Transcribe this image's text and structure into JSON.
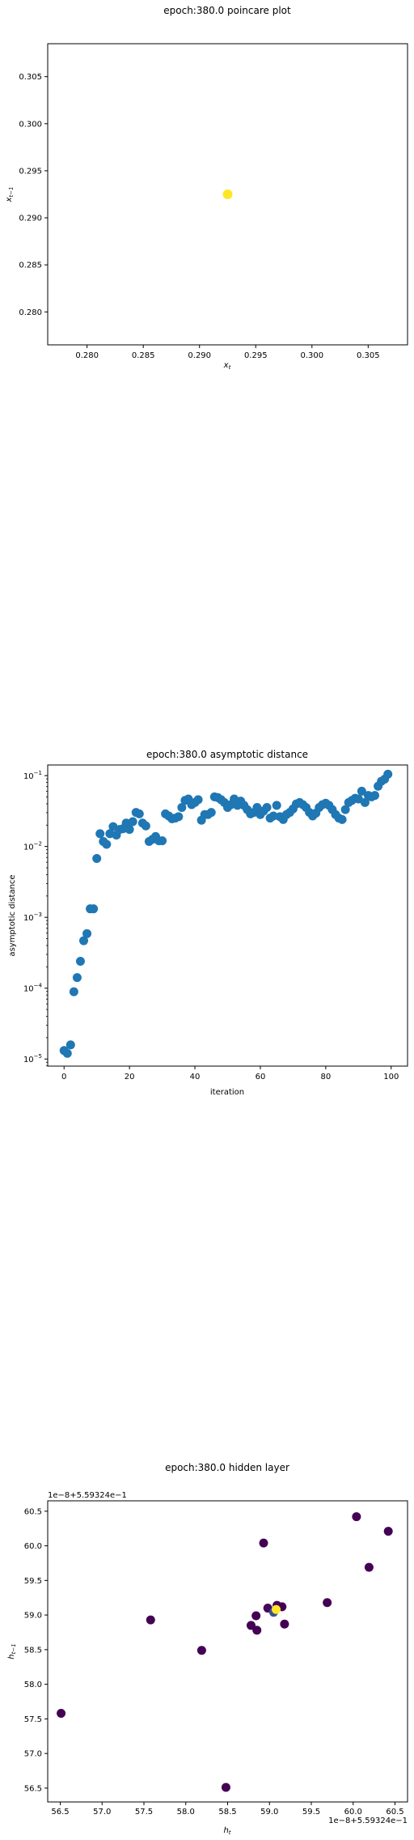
{
  "chart_data": [
    {
      "type": "scatter",
      "title": "epoch:380.0 poincare plot",
      "xlabel": "x_t",
      "ylabel": "x_{t-1}",
      "xlim": [
        0.2765,
        0.3085
      ],
      "ylim": [
        0.2765,
        0.3085
      ],
      "xticks": [
        0.28,
        0.285,
        0.29,
        0.295,
        0.3,
        0.305
      ],
      "yticks": [
        0.28,
        0.285,
        0.29,
        0.295,
        0.3,
        0.305
      ],
      "xtick_labels": [
        "0.280",
        "0.285",
        "0.290",
        "0.295",
        "0.300",
        "0.305"
      ],
      "ytick_labels": [
        "0.280",
        "0.285",
        "0.290",
        "0.295",
        "0.300",
        "0.305"
      ],
      "points": [
        {
          "x": 0.2925,
          "y": 0.2925
        }
      ],
      "point_color": "#fde725",
      "grid": false
    },
    {
      "type": "scatter",
      "title": "epoch:380.0 asymptotic distance",
      "xlabel": "iteration",
      "ylabel": "asymptotic distance",
      "yscale": "log",
      "xlim": [
        -5,
        105
      ],
      "ylim_log10": [
        -5.1,
        -0.85
      ],
      "xticks": [
        0,
        20,
        40,
        60,
        80,
        100
      ],
      "xtick_labels": [
        "0",
        "20",
        "40",
        "60",
        "80",
        "100"
      ],
      "yticks_log10": [
        -5,
        -4,
        -3,
        -2,
        -1
      ],
      "ytick_labels": [
        {
          "base": "10",
          "exp": "−5"
        },
        {
          "base": "10",
          "exp": "−4"
        },
        {
          "base": "10",
          "exp": "−3"
        },
        {
          "base": "10",
          "exp": "−2"
        },
        {
          "base": "10",
          "exp": "−1"
        }
      ],
      "x": [
        0,
        1,
        2,
        3,
        4,
        5,
        6,
        7,
        8,
        9,
        10,
        11,
        12,
        13,
        14,
        15,
        16,
        17,
        18,
        19,
        20,
        21,
        22,
        23,
        24,
        25,
        26,
        27,
        28,
        29,
        30,
        31,
        32,
        33,
        34,
        35,
        36,
        37,
        38,
        39,
        40,
        41,
        42,
        43,
        44,
        45,
        46,
        47,
        48,
        49,
        50,
        51,
        52,
        53,
        54,
        55,
        56,
        57,
        58,
        59,
        60,
        61,
        62,
        63,
        64,
        65,
        66,
        67,
        68,
        69,
        70,
        71,
        72,
        73,
        74,
        75,
        76,
        77,
        78,
        79,
        80,
        81,
        82,
        83,
        84,
        85,
        86,
        87,
        88,
        89,
        90,
        91,
        92,
        93,
        94,
        95,
        96,
        97,
        98,
        99
      ],
      "log10_y": [
        -4.88,
        -4.92,
        -4.8,
        -4.05,
        -3.85,
        -3.62,
        -3.33,
        -3.23,
        -2.88,
        -2.88,
        -2.17,
        -1.82,
        -1.93,
        -1.97,
        -1.82,
        -1.72,
        -1.84,
        -1.76,
        -1.75,
        -1.67,
        -1.76,
        -1.65,
        -1.52,
        -1.54,
        -1.67,
        -1.71,
        -1.93,
        -1.9,
        -1.86,
        -1.92,
        -1.92,
        -1.54,
        -1.57,
        -1.61,
        -1.6,
        -1.58,
        -1.45,
        -1.35,
        -1.33,
        -1.41,
        -1.38,
        -1.34,
        -1.63,
        -1.55,
        -1.55,
        -1.52,
        -1.3,
        -1.31,
        -1.34,
        -1.38,
        -1.45,
        -1.41,
        -1.33,
        -1.42,
        -1.36,
        -1.42,
        -1.48,
        -1.54,
        -1.52,
        -1.45,
        -1.55,
        -1.5,
        -1.45,
        -1.6,
        -1.57,
        -1.42,
        -1.58,
        -1.62,
        -1.55,
        -1.52,
        -1.47,
        -1.4,
        -1.38,
        -1.41,
        -1.45,
        -1.52,
        -1.57,
        -1.53,
        -1.45,
        -1.41,
        -1.39,
        -1.42,
        -1.48,
        -1.55,
        -1.6,
        -1.62,
        -1.48,
        -1.38,
        -1.35,
        -1.32,
        -1.33,
        -1.22,
        -1.38,
        -1.28,
        -1.3,
        -1.28,
        -1.15,
        -1.08,
        -1.05,
        -0.98
      ],
      "point_color": "#1f77b4",
      "grid": false
    },
    {
      "type": "scatter",
      "title": "epoch:380.0 hidden layer",
      "xlabel": "h_t",
      "ylabel": "h_{t-1}",
      "offset_label_x": "1e−8+5.59324e−1",
      "offset_label_y": "1e−8+5.59324e−1",
      "xlim": [
        56.35,
        60.65
      ],
      "ylim": [
        56.3,
        60.65
      ],
      "xticks": [
        56.5,
        57.0,
        57.5,
        58.0,
        58.5,
        59.0,
        59.5,
        60.0,
        60.5
      ],
      "yticks": [
        56.5,
        57.0,
        57.5,
        58.0,
        58.5,
        59.0,
        59.5,
        60.0,
        60.5
      ],
      "xtick_labels": [
        "56.5",
        "57.0",
        "57.5",
        "58.0",
        "58.5",
        "59.0",
        "59.5",
        "60.0",
        "60.5"
      ],
      "ytick_labels": [
        "56.5",
        "57.0",
        "57.5",
        "58.0",
        "58.5",
        "59.0",
        "59.5",
        "60.0",
        "60.5"
      ],
      "points": [
        {
          "x": 56.51,
          "y": 57.58,
          "color": "#440154"
        },
        {
          "x": 57.58,
          "y": 58.93,
          "color": "#440154"
        },
        {
          "x": 58.19,
          "y": 58.49,
          "color": "#440154"
        },
        {
          "x": 58.48,
          "y": 56.51,
          "color": "#440154"
        },
        {
          "x": 58.78,
          "y": 58.85,
          "color": "#440154"
        },
        {
          "x": 58.84,
          "y": 58.99,
          "color": "#440154"
        },
        {
          "x": 58.85,
          "y": 58.78,
          "color": "#440154"
        },
        {
          "x": 58.93,
          "y": 60.04,
          "color": "#440154"
        },
        {
          "x": 58.98,
          "y": 59.1,
          "color": "#46085c"
        },
        {
          "x": 59.05,
          "y": 59.04,
          "color": "#3b528b"
        },
        {
          "x": 59.09,
          "y": 59.14,
          "color": "#440154"
        },
        {
          "x": 59.15,
          "y": 59.12,
          "color": "#440154"
        },
        {
          "x": 59.18,
          "y": 58.87,
          "color": "#440154"
        },
        {
          "x": 59.69,
          "y": 59.18,
          "color": "#440154"
        },
        {
          "x": 60.04,
          "y": 60.42,
          "color": "#440154"
        },
        {
          "x": 60.19,
          "y": 59.69,
          "color": "#440154"
        },
        {
          "x": 60.42,
          "y": 60.21,
          "color": "#440154"
        },
        {
          "x": 59.08,
          "y": 59.08,
          "color": "#fde725"
        }
      ],
      "grid": false
    }
  ]
}
